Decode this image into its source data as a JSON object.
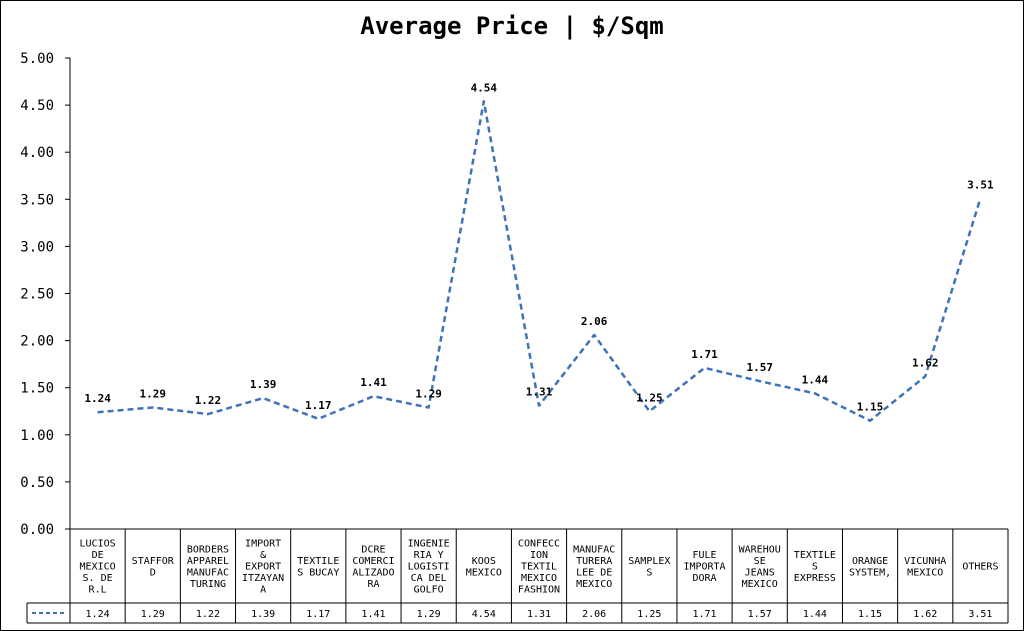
{
  "chart_data": {
    "type": "line",
    "title": "Average Price | $/Sqm",
    "xlabel": "",
    "ylabel": "",
    "ylim": [
      0,
      5
    ],
    "yticks": [
      "0.00",
      "0.50",
      "1.00",
      "1.50",
      "2.00",
      "2.50",
      "3.00",
      "3.50",
      "4.00",
      "4.50",
      "5.00"
    ],
    "grid": false,
    "legend": "data-table-row",
    "series_color": "#3f73b8",
    "categories": [
      [
        "LUCIOS",
        "DE",
        "MEXICO",
        "S. DE",
        "R.L"
      ],
      [
        "STAFFOR",
        "D"
      ],
      [
        "BORDERS",
        "APPAREL",
        "MANUFAC",
        "TURING"
      ],
      [
        "IMPORT",
        "&",
        "EXPORT",
        "ITZAYAN",
        "A"
      ],
      [
        "TEXTILE",
        "S BUCAY"
      ],
      [
        "DCRE",
        "COMERCI",
        "ALIZADO",
        "RA"
      ],
      [
        "INGENIE",
        "RIA Y",
        "LOGISTI",
        "CA DEL",
        "GOLFO"
      ],
      [
        "KOOS",
        "MEXICO"
      ],
      [
        "CONFECC",
        "ION",
        "TEXTIL",
        "MEXICO",
        "FASHION"
      ],
      [
        "MANUFAC",
        "TURERA",
        "LEE DE",
        "MEXICO"
      ],
      [
        "SAMPLEX",
        "S"
      ],
      [
        "FULE",
        "IMPORTA",
        "DORA"
      ],
      [
        "WAREHOU",
        "SE",
        "JEANS",
        "MEXICO"
      ],
      [
        "TEXTILE",
        "S",
        "EXPRESS"
      ],
      [
        "ORANGE",
        "SYSTEM,"
      ],
      [
        "VICUNHA",
        "MEXICO"
      ],
      [
        "OTHERS"
      ]
    ],
    "series": [
      {
        "values": [
          1.24,
          1.29,
          1.22,
          1.39,
          1.17,
          1.41,
          1.29,
          4.54,
          1.31,
          2.06,
          1.25,
          1.71,
          1.57,
          1.44,
          1.15,
          1.62,
          3.51
        ],
        "labels": [
          "1.24",
          "1.29",
          "1.22",
          "1.39",
          "1.17",
          "1.41",
          "1.29",
          "4.54",
          "1.31",
          "2.06",
          "1.25",
          "1.71",
          "1.57",
          "1.44",
          "1.15",
          "1.62",
          "3.51"
        ]
      }
    ]
  }
}
